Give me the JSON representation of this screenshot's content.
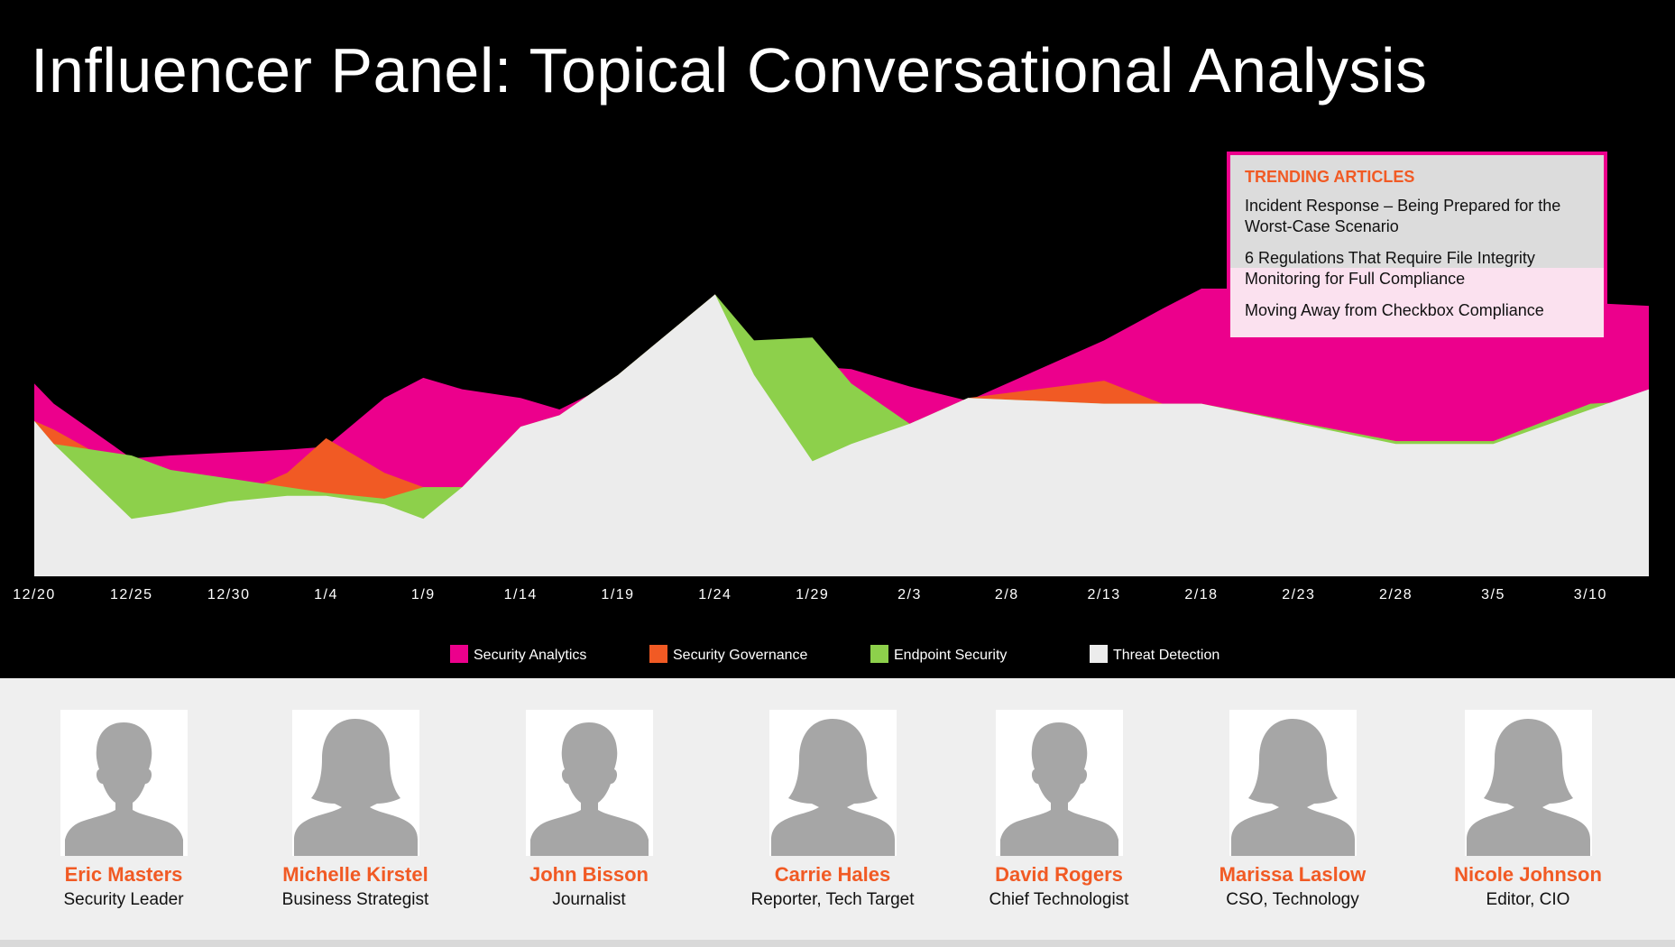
{
  "title": "Influencer Panel: Topical Conversational Analysis",
  "colors": {
    "security_analytics": "#ec008c",
    "security_governance": "#f15a24",
    "endpoint_security": "#8dd04b",
    "threat_detection": "#ececec",
    "name_accent": "#f15a24"
  },
  "chart_data": {
    "type": "area",
    "title": "",
    "xlabel": "",
    "ylabel": "",
    "legend_position": "bottom-center",
    "grid": false,
    "x": [
      "12/20",
      "12/21",
      "12/25",
      "12/27",
      "12/30",
      "1/2",
      "1/4",
      "1/7",
      "1/9",
      "1/11",
      "1/14",
      "1/16",
      "1/19",
      "1/24",
      "1/26",
      "1/29",
      "1/31",
      "2/3",
      "2/6",
      "2/13",
      "2/16",
      "2/18",
      "2/28",
      "3/5",
      "3/10",
      "3/13"
    ],
    "x_tick_labels": [
      "12/20",
      "12/25",
      "12/30",
      "1/4",
      "1/9",
      "1/14",
      "1/19",
      "1/24",
      "1/29",
      "2/3",
      "2/8",
      "2/13",
      "2/18",
      "2/23",
      "2/28",
      "3/5",
      "3/10"
    ],
    "ylim": [
      0,
      100
    ],
    "series": [
      {
        "name": "Security Analytics",
        "key": "security_analytics",
        "values": [
          67,
          60,
          41,
          42,
          43,
          44,
          45,
          62,
          69,
          65,
          62,
          58,
          68,
          80,
          79,
          73,
          72,
          66,
          61,
          82,
          93,
          100,
          100,
          100,
          95,
          94
        ]
      },
      {
        "name": "Security Governance",
        "key": "security_governance",
        "values": [
          54,
          51,
          36,
          33,
          27,
          36,
          48,
          36,
          31,
          31,
          52,
          56,
          70,
          98,
          78,
          60,
          66,
          53,
          62,
          68,
          60,
          60,
          47,
          47,
          60,
          61
        ]
      },
      {
        "name": "Endpoint Security",
        "key": "endpoint_security",
        "values": [
          54,
          46,
          42,
          37,
          34,
          31,
          29,
          27,
          31,
          31,
          52,
          56,
          70,
          98,
          82,
          83,
          67,
          53,
          62,
          60,
          60,
          60,
          47,
          47,
          60,
          61
        ]
      },
      {
        "name": "Threat Detection",
        "key": "threat_detection",
        "values": [
          54,
          46,
          20,
          22,
          26,
          28,
          28,
          25,
          20,
          31,
          52,
          56,
          70,
          98,
          70,
          40,
          46,
          53,
          62,
          60,
          60,
          60,
          46,
          46,
          58,
          65
        ]
      }
    ]
  },
  "trending": {
    "heading": "TRENDING ARTICLES",
    "articles": [
      "Incident Response – Being Prepared for the Worst-Case Scenario",
      "6 Regulations That Require File Integrity Monitoring for Full Compliance",
      "Moving Away from Checkbox Compliance"
    ]
  },
  "panel": {
    "people": [
      {
        "name": "Eric Masters",
        "role": "Security Leader",
        "gender": "male"
      },
      {
        "name": "Michelle Kirstel",
        "role": "Business Strategist",
        "gender": "female"
      },
      {
        "name": "John Bisson",
        "role": "Journalist",
        "gender": "male"
      },
      {
        "name": "Carrie Hales",
        "role": "Reporter, Tech Target",
        "gender": "female"
      },
      {
        "name": "David Rogers",
        "role": "Chief Technologist",
        "gender": "male"
      },
      {
        "name": "Marissa Laslow",
        "role": "CSO, Technology",
        "gender": "female"
      },
      {
        "name": "Nicole Johnson",
        "role": "Editor, CIO",
        "gender": "female"
      }
    ]
  }
}
